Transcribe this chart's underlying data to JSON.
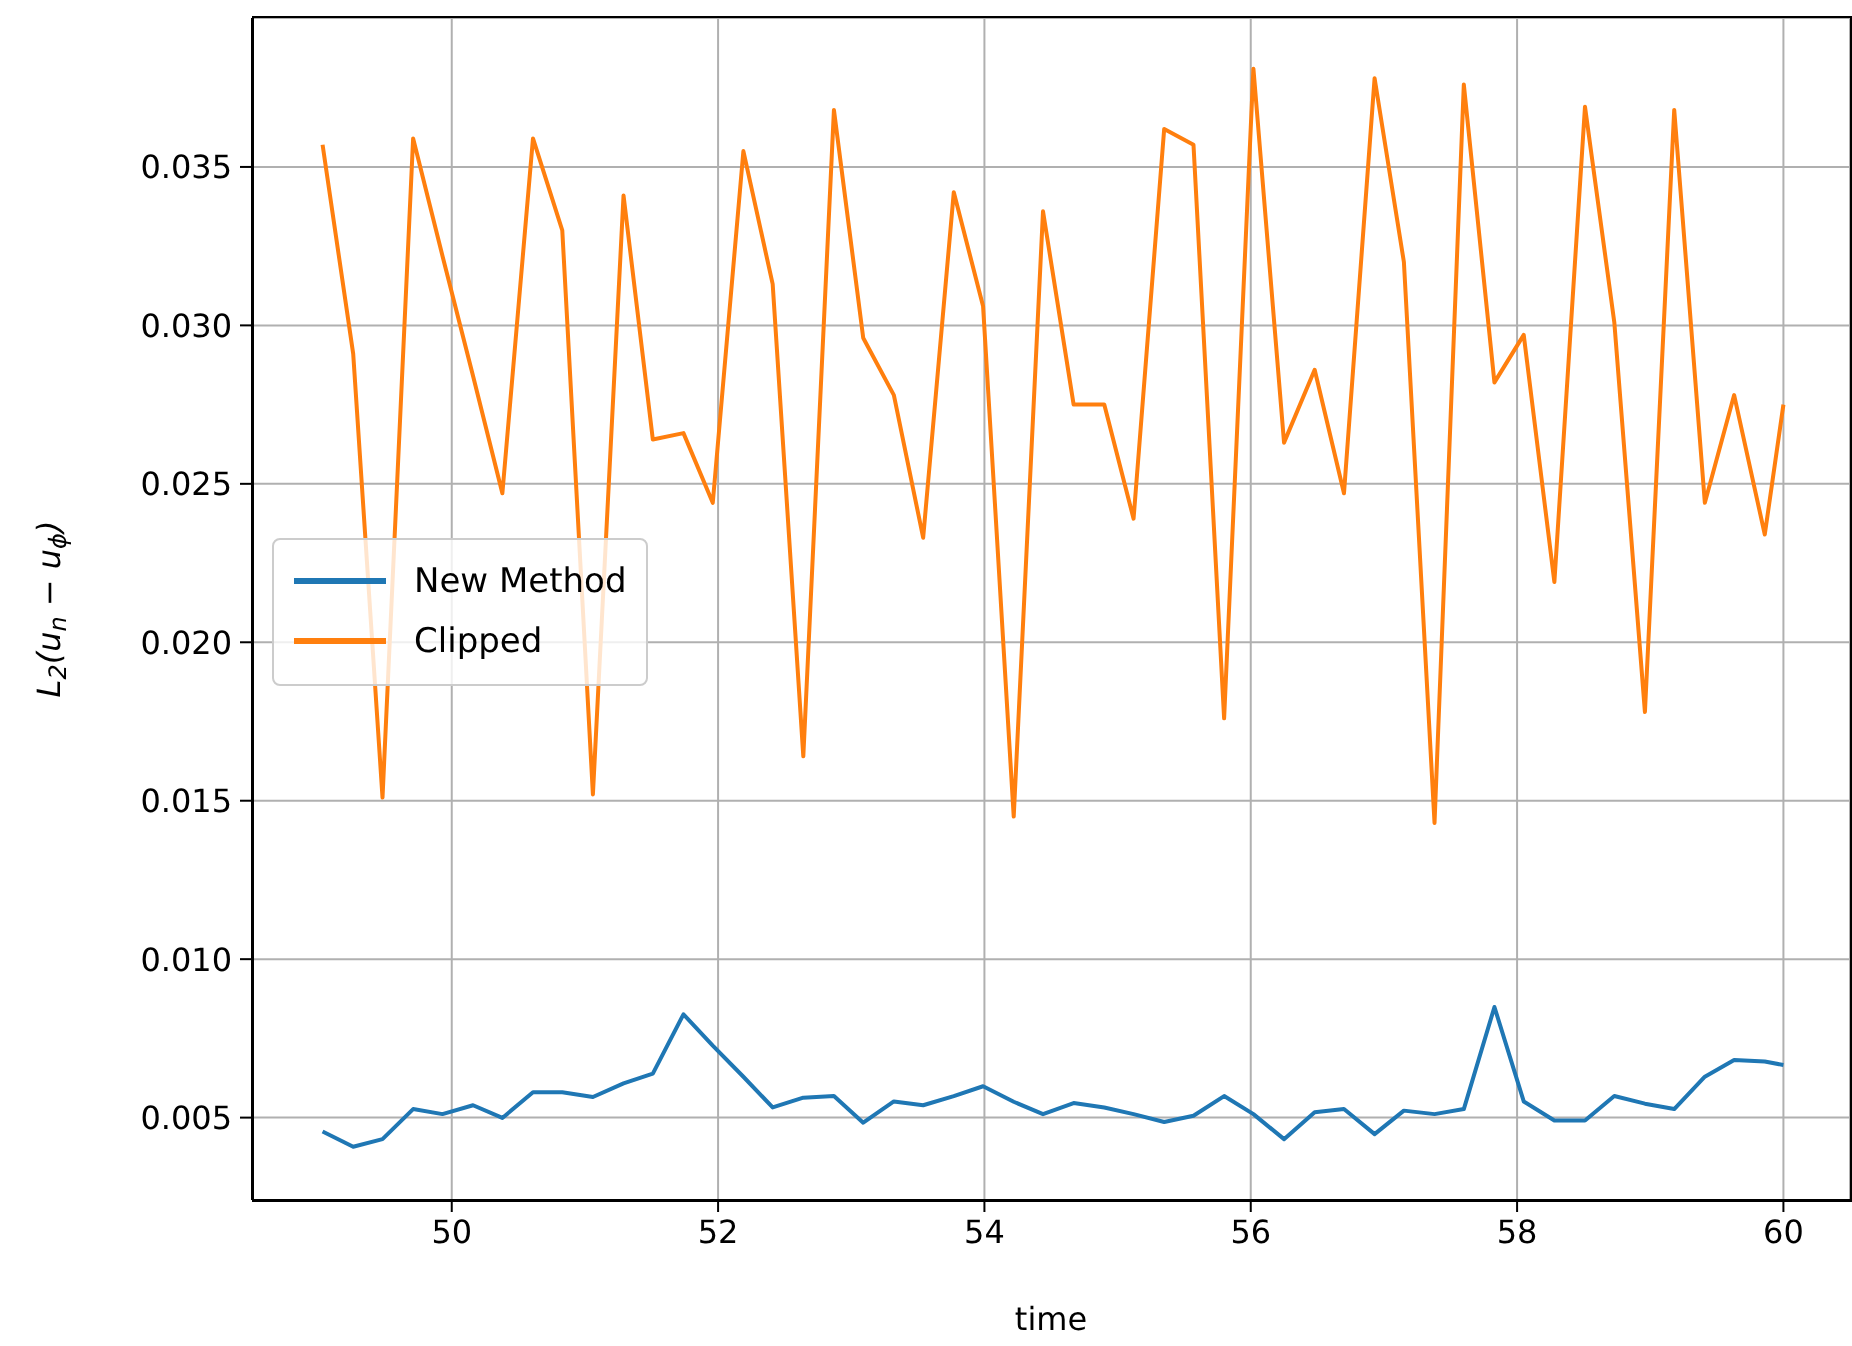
{
  "chart_data": {
    "type": "line",
    "xlabel": "time",
    "ylabel": "L$_{2}$(u$_{n}$ − u$_{ϕ}$)",
    "x": [
      49.03,
      49.26,
      49.48,
      49.71,
      49.93,
      50.16,
      50.38,
      50.61,
      50.83,
      51.06,
      51.29,
      51.51,
      51.74,
      51.96,
      52.19,
      52.41,
      52.64,
      52.87,
      53.09,
      53.32,
      53.54,
      53.77,
      53.99,
      54.22,
      54.44,
      54.67,
      54.9,
      55.12,
      55.35,
      55.57,
      55.8,
      56.02,
      56.25,
      56.48,
      56.7,
      56.93,
      57.15,
      57.38,
      57.6,
      57.83,
      58.05,
      58.28,
      58.51,
      58.73,
      58.96,
      59.18,
      59.41,
      59.63,
      59.86,
      60.0
    ],
    "series": [
      {
        "name": "New Method",
        "color": "#1f77b4",
        "values": [
          0.00456,
          0.00408,
          0.00432,
          0.00527,
          0.00511,
          0.00539,
          0.00499,
          0.0058,
          0.0058,
          0.00565,
          0.00608,
          0.00639,
          0.00826,
          0.00727,
          0.00629,
          0.00532,
          0.00563,
          0.00568,
          0.00484,
          0.00551,
          0.00539,
          0.00568,
          0.00599,
          0.0055,
          0.00511,
          0.00546,
          0.00532,
          0.00511,
          0.00486,
          0.00506,
          0.00568,
          0.00511,
          0.00432,
          0.00517,
          0.00527,
          0.00448,
          0.00522,
          0.00511,
          0.00527,
          0.00849,
          0.00551,
          0.00491,
          0.00491,
          0.00568,
          0.00544,
          0.00527,
          0.00629,
          0.00682,
          0.00677,
          0.00666
        ]
      },
      {
        "name": "Clipped",
        "color": "#ff7f0e",
        "values": [
          0.0357,
          0.0291,
          0.0151,
          0.0359,
          0.0322,
          0.0284,
          0.0247,
          0.0359,
          0.033,
          0.0152,
          0.0341,
          0.0264,
          0.0266,
          0.0244,
          0.0355,
          0.0313,
          0.0164,
          0.0368,
          0.0296,
          0.0278,
          0.0233,
          0.0342,
          0.0306,
          0.0145,
          0.0336,
          0.0275,
          0.0275,
          0.0239,
          0.0362,
          0.0357,
          0.0176,
          0.0381,
          0.0263,
          0.0286,
          0.0247,
          0.0378,
          0.032,
          0.0143,
          0.0376,
          0.0282,
          0.0297,
          0.0219,
          0.0369,
          0.0301,
          0.0178,
          0.0368,
          0.0244,
          0.0278,
          0.0234,
          0.0275
        ]
      }
    ],
    "xlim": [
      48.5,
      60.5
    ],
    "xticks": [
      50,
      52,
      54,
      56,
      58,
      60
    ],
    "ylim": [
      0.0024,
      0.0397
    ],
    "yticks": [
      {
        "value": 0.005,
        "label": "0.005"
      },
      {
        "value": 0.01,
        "label": "0.010"
      },
      {
        "value": 0.015,
        "label": "0.015"
      },
      {
        "value": 0.02,
        "label": "0.020"
      },
      {
        "value": 0.025,
        "label": "0.025"
      },
      {
        "value": 0.03,
        "label": "0.030"
      },
      {
        "value": 0.035,
        "label": "0.035"
      }
    ],
    "grid": true,
    "legend": "left",
    "marker": "none",
    "line_style": "solid"
  }
}
